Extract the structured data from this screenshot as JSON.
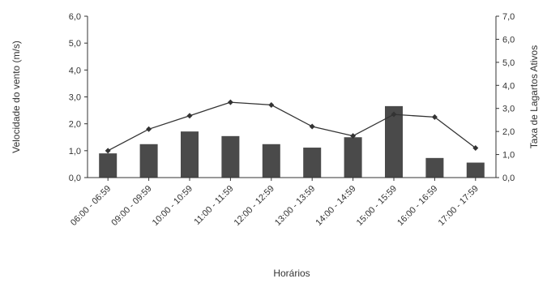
{
  "chart_data": {
    "type": "bar",
    "categories": [
      "06:00 - 06:59",
      "09:00 - 09:59",
      "10:00 - 10:59",
      "11:00 - 11:59",
      "12:00 - 12:59",
      "13:00 - 13:59",
      "14:00 - 14:59",
      "15:00 - 15:59",
      "16:00 - 16:59",
      "17:00 - 17:59"
    ],
    "series": [
      {
        "type": "bar",
        "axis": "right",
        "values": [
          1.05,
          1.45,
          2.0,
          1.8,
          1.45,
          1.3,
          1.75,
          3.1,
          0.85,
          0.65
        ]
      },
      {
        "type": "line",
        "axis": "left",
        "values": [
          1.0,
          1.8,
          2.3,
          2.8,
          2.7,
          1.9,
          1.55,
          2.35,
          2.25,
          1.1
        ]
      }
    ],
    "xlabel": "Horários",
    "ylabel": "Velocidade do vento (m/s)",
    "ylabel_right": "Taxa de Lagartos Ativos",
    "ylim": [
      0,
      6
    ],
    "ylim_right": [
      0,
      7
    ],
    "yticks": [
      "0,0",
      "1,0",
      "2,0",
      "3,0",
      "4,0",
      "5,0",
      "6,0"
    ],
    "yticks_right": [
      "0,0",
      "1,0",
      "2,0",
      "3,0",
      "4,0",
      "5,0",
      "6,0",
      "7,0"
    ],
    "grid": false
  }
}
